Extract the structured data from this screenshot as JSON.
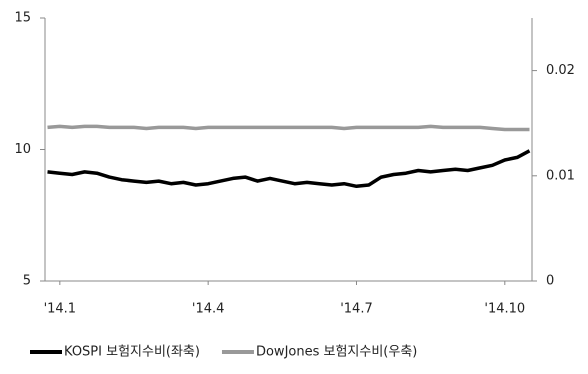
{
  "chart_data": {
    "type": "line",
    "x": [
      0.75,
      1,
      1.25,
      1.5,
      1.75,
      2,
      2.25,
      2.5,
      2.75,
      3,
      3.25,
      3.5,
      3.75,
      4,
      4.25,
      4.5,
      4.75,
      5,
      5.25,
      5.5,
      5.75,
      6,
      6.25,
      6.5,
      6.75,
      7,
      7.25,
      7.5,
      7.75,
      8,
      8.25,
      8.5,
      8.75,
      9,
      9.25,
      9.5,
      9.75,
      10,
      10.25,
      10.5
    ],
    "series": [
      {
        "name": "KOSPI 보험지수비(좌축)",
        "color": "#000000",
        "values": [
          9.15,
          9.1,
          9.05,
          9.15,
          9.1,
          8.95,
          8.85,
          8.8,
          8.75,
          8.8,
          8.7,
          8.75,
          8.65,
          8.7,
          8.8,
          8.9,
          8.95,
          8.8,
          8.9,
          8.8,
          8.7,
          8.75,
          8.7,
          8.65,
          8.7,
          8.6,
          8.65,
          8.95,
          9.05,
          9.1,
          9.2,
          9.15,
          9.2,
          9.25,
          9.2,
          9.3,
          9.4,
          9.6,
          9.7,
          9.95
        ]
      },
      {
        "name": "DowJones 보험지수비(우축)",
        "color": "#999999",
        "axis": "y2",
        "values": [
          0.0146,
          0.0147,
          0.0146,
          0.0147,
          0.0147,
          0.0146,
          0.0146,
          0.0146,
          0.0145,
          0.0146,
          0.0146,
          0.0146,
          0.0145,
          0.0146,
          0.0146,
          0.0146,
          0.0146,
          0.0146,
          0.0146,
          0.0146,
          0.0146,
          0.0146,
          0.0146,
          0.0146,
          0.0145,
          0.0146,
          0.0146,
          0.0146,
          0.0146,
          0.0146,
          0.0146,
          0.0147,
          0.0146,
          0.0146,
          0.0146,
          0.0146,
          0.0145,
          0.0144,
          0.0144,
          0.0144
        ]
      }
    ],
    "xlim": [
      0.7,
      10.55
    ],
    "xticks": [
      {
        "value": 1,
        "label": "'14.1"
      },
      {
        "value": 4,
        "label": "'14.4"
      },
      {
        "value": 7,
        "label": "'14.7"
      },
      {
        "value": 10,
        "label": "'14.10"
      }
    ],
    "ylim": [
      5,
      15
    ],
    "yticks": [
      5,
      10,
      15
    ],
    "y2lim": [
      0,
      0.025
    ],
    "y2ticks": [
      0,
      0.01,
      0.02
    ],
    "legend": "bottom"
  }
}
